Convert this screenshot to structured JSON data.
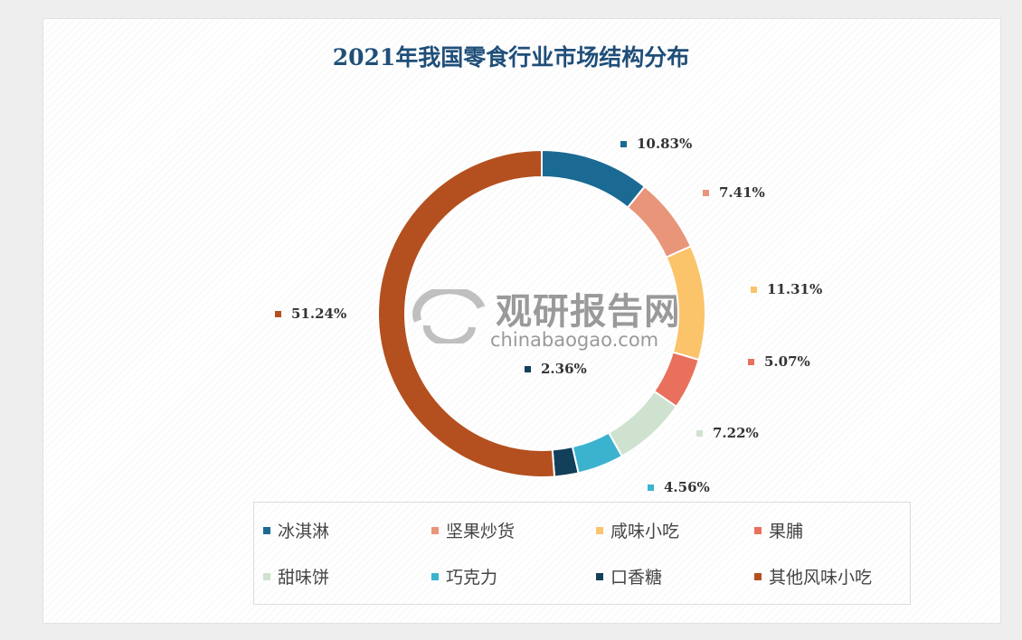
{
  "chart_data": {
    "type": "pie",
    "variant": "donut",
    "title": "2021年我国零食行业市场结构分布",
    "unit": "%",
    "categories": [
      "冰淇淋",
      "坚果炒货",
      "咸味小吃",
      "果脯",
      "甜味饼",
      "巧克力",
      "口香糖",
      "其他风味小吃"
    ],
    "values": [
      10.83,
      7.41,
      11.31,
      5.07,
      7.22,
      4.56,
      2.36,
      51.24
    ],
    "data_labels": [
      "10.83%",
      "7.41%",
      "11.31%",
      "5.07%",
      "7.22%",
      "4.56%",
      "2.36%",
      "51.24%"
    ],
    "colors": [
      "#1a6a94",
      "#e8957a",
      "#fbc36a",
      "#e8705c",
      "#cfe2cf",
      "#3bb3cf",
      "#123f5a",
      "#b4501f"
    ],
    "legend_position": "bottom"
  },
  "watermark": {
    "name": "观研报告网",
    "url": "chinabaogao.com"
  }
}
